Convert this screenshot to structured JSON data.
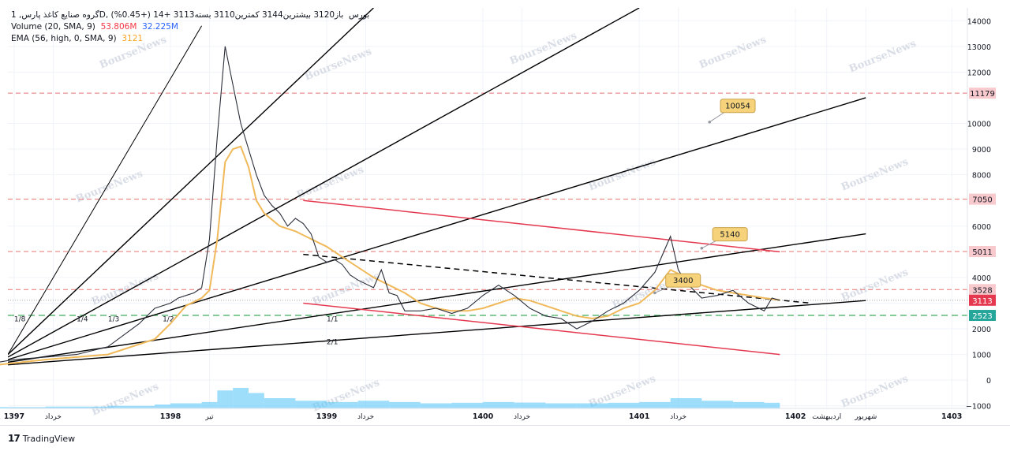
{
  "legend": {
    "symbol": "گروه صنایع کاغذ پارس, 1D, بورس",
    "ohlc": "باز3120  بیشترین3144  کمترین3110  بسته3113  +14 (+0.45%)",
    "volume_label": "Volume  (20, SMA, 9)",
    "volume_value": "53.806M",
    "volume_sma": "32.225M",
    "ema_label": "EMA  (56, high, 0, SMA, 9)",
    "ema_value": "3121"
  },
  "footer": {
    "brand": "TradingView",
    "logo": "17"
  },
  "watermark": "BourseNews",
  "colors": {
    "price": "#2a2e39",
    "ema": "#f0b95a",
    "volume": "#4fc3f7",
    "red_line": "#e53950",
    "green_line": "#3fae5a",
    "last_price": "#e53950",
    "green_badge": "#26a69a",
    "callout": "#f6d37a"
  },
  "chart_data": {
    "type": "line",
    "title": "",
    "price_series": {
      "x": [
        1396.9,
        1397.0,
        1397.2,
        1397.4,
        1397.6,
        1397.8,
        1397.9,
        1398.0,
        1398.05,
        1398.1,
        1398.15,
        1398.2,
        1398.25,
        1398.3,
        1398.35,
        1398.4,
        1398.45,
        1398.5,
        1398.55,
        1398.6,
        1398.65,
        1398.7,
        1398.75,
        1398.8,
        1398.85,
        1398.9,
        1398.95,
        1399.0,
        1399.05,
        1399.1,
        1399.15,
        1399.2,
        1399.3,
        1399.35,
        1399.4,
        1399.45,
        1399.5,
        1399.6,
        1399.7,
        1399.8,
        1399.9,
        1400.0,
        1400.1,
        1400.2,
        1400.3,
        1400.4,
        1400.5,
        1400.6,
        1400.7,
        1400.8,
        1400.9,
        1401.0,
        1401.1,
        1401.2,
        1401.25,
        1401.3,
        1401.35,
        1401.4,
        1401.5,
        1401.6,
        1401.7,
        1401.8,
        1401.85,
        1401.9
      ],
      "values": [
        700,
        800,
        900,
        1000,
        1300,
        2200,
        2800,
        3000,
        3200,
        3300,
        3400,
        3600,
        5500,
        9500,
        13000,
        11500,
        10000,
        9000,
        8000,
        7200,
        6800,
        6500,
        6000,
        6300,
        6100,
        5700,
        4800,
        4600,
        4700,
        4500,
        4100,
        3900,
        3600,
        4300,
        3400,
        3300,
        2700,
        2700,
        2800,
        2600,
        2800,
        3300,
        3700,
        3300,
        2800,
        2500,
        2400,
        2000,
        2300,
        2700,
        3000,
        3500,
        4200,
        5600,
        4300,
        3800,
        3500,
        3200,
        3300,
        3500,
        3000,
        2700,
        3200,
        3113
      ]
    },
    "ema_series": {
      "x": [
        1396.9,
        1397.2,
        1397.6,
        1397.9,
        1398.0,
        1398.1,
        1398.2,
        1398.25,
        1398.3,
        1398.35,
        1398.4,
        1398.45,
        1398.5,
        1398.55,
        1398.6,
        1398.7,
        1398.8,
        1398.9,
        1399.0,
        1399.1,
        1399.2,
        1399.3,
        1399.4,
        1399.5,
        1399.6,
        1399.7,
        1399.8,
        1399.9,
        1400.0,
        1400.1,
        1400.2,
        1400.3,
        1400.4,
        1400.5,
        1400.6,
        1400.7,
        1400.8,
        1400.9,
        1401.0,
        1401.1,
        1401.2,
        1401.3,
        1401.4,
        1401.5,
        1401.6,
        1401.7,
        1401.8,
        1401.9
      ],
      "values": [
        600,
        800,
        1000,
        1600,
        2200,
        2900,
        3200,
        3500,
        5500,
        8500,
        9000,
        9100,
        8300,
        7000,
        6500,
        6000,
        5800,
        5500,
        5200,
        4800,
        4400,
        4000,
        3700,
        3400,
        3000,
        2800,
        2700,
        2700,
        2800,
        3000,
        3200,
        3100,
        2900,
        2700,
        2500,
        2400,
        2500,
        2800,
        3000,
        3500,
        4300,
        4000,
        3700,
        3500,
        3400,
        3300,
        3200,
        3121
      ]
    },
    "volume_series": {
      "x": [
        1396.9,
        1397.2,
        1397.6,
        1397.9,
        1398.0,
        1398.2,
        1398.3,
        1398.4,
        1398.5,
        1398.6,
        1398.8,
        1399.0,
        1399.2,
        1399.4,
        1399.6,
        1399.8,
        1400.0,
        1400.2,
        1400.4,
        1400.6,
        1400.8,
        1401.0,
        1401.2,
        1401.4,
        1401.6,
        1401.8,
        1401.9
      ],
      "values": [
        -1050,
        -1030,
        -1000,
        -950,
        -900,
        -850,
        -400,
        -300,
        -500,
        -700,
        -800,
        -850,
        -800,
        -850,
        -900,
        -880,
        -850,
        -870,
        -900,
        -900,
        -880,
        -850,
        -700,
        -800,
        -850,
        -880,
        -900
      ]
    },
    "x_ticks": [
      {
        "x": 1397.0,
        "label": "1397"
      },
      {
        "x": 1397.25,
        "label": "خرداد"
      },
      {
        "x": 1398.0,
        "label": "1398"
      },
      {
        "x": 1398.25,
        "label": "تیر"
      },
      {
        "x": 1399.0,
        "label": "1399"
      },
      {
        "x": 1399.25,
        "label": "خرداد"
      },
      {
        "x": 1400.0,
        "label": "1400"
      },
      {
        "x": 1400.25,
        "label": "خرداد"
      },
      {
        "x": 1401.0,
        "label": "1401"
      },
      {
        "x": 1401.25,
        "label": "خرداد"
      },
      {
        "x": 1402.0,
        "label": "1402"
      },
      {
        "x": 1402.2,
        "label": "اردیبهشت"
      },
      {
        "x": 1402.45,
        "label": "شهریور"
      },
      {
        "x": 1403.0,
        "label": "1403"
      }
    ],
    "y_ticks": [
      14000,
      13000,
      12000,
      10000,
      9000,
      8000,
      6000,
      4000,
      3000,
      2000,
      1000,
      0,
      -1000
    ],
    "y_range": [
      -1100,
      14500
    ],
    "x_range": [
      1396.96,
      1403.1
    ],
    "h_levels": [
      {
        "value": 11179,
        "label": "11179",
        "color": "#e57373"
      },
      {
        "value": 7050,
        "label": "7050",
        "color": "#e57373"
      },
      {
        "value": 5011,
        "label": "5011",
        "color": "#e57373"
      },
      {
        "value": 3528,
        "label": "3528",
        "color": "#e57373"
      }
    ],
    "green_level": {
      "value": 2523,
      "label": "2523"
    },
    "last_price": {
      "value": 3113,
      "label": "3113"
    },
    "red_channel": [
      {
        "x1": 1398.85,
        "y1": 7000,
        "x2": 1401.9,
        "y2": 5000
      },
      {
        "x1": 1398.85,
        "y1": 3000,
        "x2": 1401.9,
        "y2": 1000
      }
    ],
    "dashed_trend": {
      "x1": 1398.85,
      "y1": 4900,
      "x2": 1402.1,
      "y2": 3000
    },
    "fan_lines": [
      {
        "x1": 1396.96,
        "y1": 1000,
        "x2": 1398.2,
        "y2": 13800,
        "w": 1
      },
      {
        "x1": 1396.96,
        "y1": 1000,
        "x2": 1399.3,
        "y2": 14500,
        "w": 1.4
      },
      {
        "x1": 1396.96,
        "y1": 900,
        "x2": 1401.0,
        "y2": 14500,
        "w": 1.4
      },
      {
        "x1": 1396.96,
        "y1": 800,
        "x2": 1402.45,
        "y2": 11000,
        "w": 1.4
      },
      {
        "x1": 1396.96,
        "y1": 700,
        "x2": 1402.45,
        "y2": 5700,
        "w": 1.4
      },
      {
        "x1": 1396.96,
        "y1": 600,
        "x2": 1402.45,
        "y2": 3100,
        "w": 1.4
      }
    ],
    "fan_labels": [
      {
        "x": 1397.0,
        "y": 2300,
        "label": "1/8"
      },
      {
        "x": 1397.4,
        "y": 2300,
        "label": "1/4"
      },
      {
        "x": 1397.6,
        "y": 2300,
        "label": "1/3"
      },
      {
        "x": 1397.95,
        "y": 2300,
        "label": "1/2"
      },
      {
        "x": 1399.0,
        "y": 2300,
        "label": "1/1"
      },
      {
        "x": 1399.0,
        "y": 1400,
        "label": "2/1"
      }
    ],
    "callouts": [
      {
        "label": "10054",
        "x": 1401.45,
        "y": 10054,
        "bx": 1401.55,
        "by": 10700
      },
      {
        "label": "5140",
        "x": 1401.4,
        "y": 5140,
        "bx": 1401.5,
        "by": 5700
      },
      {
        "label": "3400",
        "x": 1401.1,
        "y": 3400,
        "bx": 1401.2,
        "by": 3900
      }
    ]
  }
}
